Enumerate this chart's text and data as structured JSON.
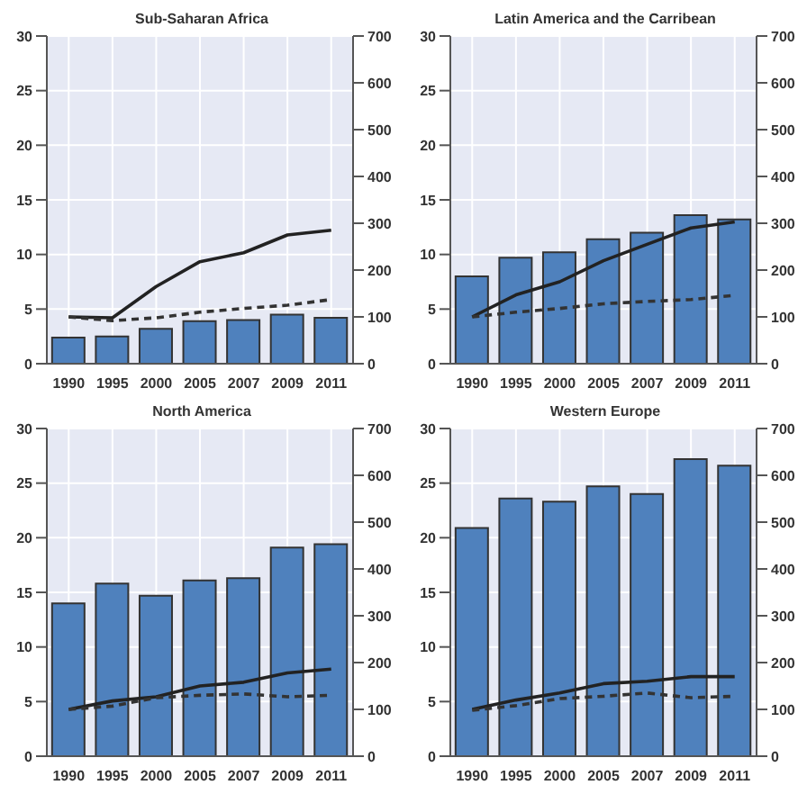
{
  "chart_data": [
    {
      "type": "bar",
      "title": "Sub-Saharan Africa",
      "categories": [
        "1990",
        "1995",
        "2000",
        "2005",
        "2007",
        "2009",
        "2011"
      ],
      "series": [
        {
          "color": "#4f81bd",
          "values": [
            2.4,
            2.5,
            3.2,
            3.9,
            4.0,
            4.5,
            4.2
          ]
        },
        {
          "type": "line",
          "axis": "y2",
          "color": "#222222",
          "line_style": "solid",
          "values": [
            100,
            98,
            165,
            218,
            237,
            275,
            285
          ]
        },
        {
          "type": "line",
          "axis": "y2",
          "color": "#333333",
          "line_style": "dashed",
          "values": [
            100,
            92,
            98,
            110,
            118,
            125,
            137
          ]
        }
      ],
      "ylim": [
        0,
        30
      ],
      "yticks": [
        0,
        5,
        10,
        15,
        20,
        25,
        30
      ],
      "y2lim": [
        0,
        700
      ],
      "y2ticks": [
        0,
        100,
        200,
        300,
        400,
        500,
        600,
        700
      ],
      "grid": true,
      "marker": "none"
    },
    {
      "type": "bar",
      "title": "Latin America and the Carribean",
      "categories": [
        "1990",
        "1995",
        "2000",
        "2005",
        "2007",
        "2009",
        "2011"
      ],
      "series": [
        {
          "color": "#4f81bd",
          "values": [
            8.0,
            9.7,
            10.2,
            11.4,
            12.0,
            13.6,
            13.2
          ]
        },
        {
          "type": "line",
          "axis": "y2",
          "color": "#222222",
          "line_style": "solid",
          "values": [
            100,
            147,
            175,
            220,
            255,
            290,
            303
          ]
        },
        {
          "type": "line",
          "axis": "y2",
          "color": "#333333",
          "line_style": "dashed",
          "values": [
            100,
            110,
            118,
            128,
            133,
            137,
            146
          ]
        }
      ],
      "ylim": [
        0,
        30
      ],
      "yticks": [
        0,
        5,
        10,
        15,
        20,
        25,
        30
      ],
      "y2lim": [
        0,
        700
      ],
      "y2ticks": [
        0,
        100,
        200,
        300,
        400,
        500,
        600,
        700
      ],
      "grid": true,
      "marker": "none"
    },
    {
      "type": "bar",
      "title": "North America",
      "categories": [
        "1990",
        "1995",
        "2000",
        "2005",
        "2007",
        "2009",
        "2011"
      ],
      "series": [
        {
          "color": "#4f81bd",
          "values": [
            14.0,
            15.8,
            14.7,
            16.1,
            16.3,
            19.1,
            19.4
          ]
        },
        {
          "type": "line",
          "axis": "y2",
          "color": "#222222",
          "line_style": "solid",
          "values": [
            100,
            118,
            127,
            150,
            158,
            178,
            186
          ]
        },
        {
          "type": "line",
          "axis": "y2",
          "color": "#333333",
          "line_style": "dashed",
          "values": [
            100,
            107,
            125,
            130,
            133,
            127,
            130
          ]
        }
      ],
      "ylim": [
        0,
        30
      ],
      "yticks": [
        0,
        5,
        10,
        15,
        20,
        25,
        30
      ],
      "y2lim": [
        0,
        700
      ],
      "y2ticks": [
        0,
        100,
        200,
        300,
        400,
        500,
        600,
        700
      ],
      "grid": true,
      "marker": "none"
    },
    {
      "type": "bar",
      "title": "Western Europe",
      "categories": [
        "1990",
        "1995",
        "2000",
        "2005",
        "2007",
        "2009",
        "2011"
      ],
      "series": [
        {
          "color": "#4f81bd",
          "values": [
            20.9,
            23.6,
            23.3,
            24.7,
            24.0,
            27.2,
            26.6
          ]
        },
        {
          "type": "line",
          "axis": "y2",
          "color": "#222222",
          "line_style": "solid",
          "values": [
            100,
            120,
            135,
            155,
            160,
            170,
            170
          ]
        },
        {
          "type": "line",
          "axis": "y2",
          "color": "#333333",
          "line_style": "dashed",
          "values": [
            98,
            108,
            123,
            128,
            135,
            125,
            128
          ]
        }
      ],
      "ylim": [
        0,
        30
      ],
      "yticks": [
        0,
        5,
        10,
        15,
        20,
        25,
        30
      ],
      "y2lim": [
        0,
        700
      ],
      "y2ticks": [
        0,
        100,
        200,
        300,
        400,
        500,
        600,
        700
      ],
      "grid": true,
      "marker": "none"
    }
  ]
}
